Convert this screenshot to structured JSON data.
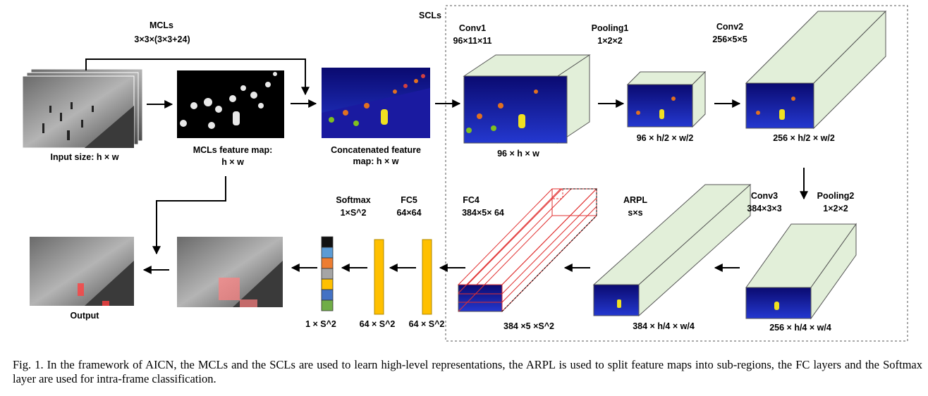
{
  "labels": {
    "mcls": "MCLs",
    "mcls_dims": "3×3×(3×3+24)",
    "input_size": "Input size: h × w",
    "mcls_map_title": "MCLs feature map:",
    "mcls_map_dims": "h × w",
    "concat_title": "Concatenated feature",
    "concat_dims": "map: h × w",
    "scls": "SCLs",
    "conv1": "Conv1",
    "conv1_dims": "96×11×11",
    "conv1_out": "96 × h × w",
    "pool1": "Pooling1",
    "pool1_dims": "1×2×2",
    "pool1_out": "96 × h/2 × w/2",
    "conv2": "Conv2",
    "conv2_dims": "256×5×5",
    "conv2_out": "256 × h/2 × w/2",
    "conv3": "Conv3",
    "conv3_dims": "384×3×3",
    "pool2": "Pooling2",
    "pool2_dims": "1×2×2",
    "pool2_out": "256 × h/4 × w/4",
    "arpl": "ARPL",
    "arpl_dims": "s×s",
    "arpl_out": "384 × h/4 × w/4",
    "fc4": "FC4",
    "fc4_dims": "384×5× 64",
    "fc4_out": "384 ×5 ×S^2",
    "fc5": "FC5",
    "fc5_dims": "64×64",
    "fc5_out": "64 × S^2",
    "fc4b_out": "64 × S^2",
    "softmax": "Softmax",
    "softmax_dims": "1×S^2",
    "softmax_out": "1 × S^2",
    "output": "Output"
  },
  "caption": "Fig. 1.  In the framework of AICN, the MCLs and the SCLs are used to learn high-level representations, the ARPL is used to split feature maps into sub-regions, the FC layers and the Softmax layer are used for intra-frame classification.",
  "colors": {
    "block_face": "#e2efd9",
    "block_edge": "#555555",
    "fc_bar": "#ffc000",
    "fc4_outline": "#e03030",
    "heatmap_bg": "#1a0a8c",
    "softmax_cells": [
      "#111111",
      "#5b9bd5",
      "#ed7d31",
      "#a5a5a5",
      "#ffc000",
      "#4472c4",
      "#70ad47"
    ]
  }
}
